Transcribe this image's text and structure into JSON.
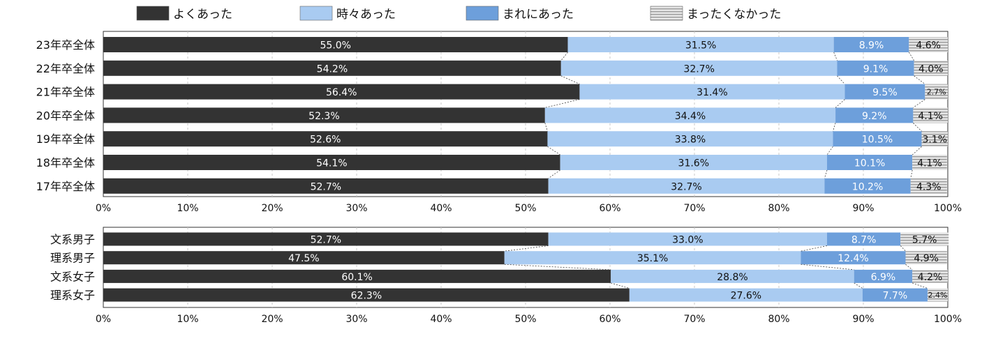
{
  "chart_data": [
    {
      "type": "bar",
      "orientation": "horizontal",
      "stacked": true,
      "percent": true,
      "categories": [
        "23年卒全体",
        "22年卒全体",
        "21年卒全体",
        "20年卒全体",
        "19年卒全体",
        "18年卒全体",
        "17年卒全体"
      ],
      "series": [
        {
          "name": "よくあった",
          "values": [
            55.0,
            54.2,
            56.4,
            52.3,
            52.6,
            54.1,
            52.7
          ],
          "labels": [
            "55.0%",
            "54.2%",
            "56.4%",
            "52.3%",
            "52.6%",
            "54.1%",
            "52.7%"
          ]
        },
        {
          "name": "時々あった",
          "values": [
            31.5,
            32.7,
            31.4,
            34.4,
            33.8,
            31.6,
            32.7
          ],
          "labels": [
            "31.5%",
            "32.7%",
            "31.4%",
            "34.4%",
            "33.8%",
            "31.6%",
            "32.7%"
          ]
        },
        {
          "name": "まれにあった",
          "values": [
            8.9,
            9.1,
            9.5,
            9.2,
            10.5,
            10.1,
            10.2
          ],
          "labels": [
            "8.9%",
            "9.1%",
            "9.5%",
            "9.2%",
            "10.5%",
            "10.1%",
            "10.2%"
          ]
        },
        {
          "name": "まったくなかった",
          "values": [
            4.6,
            4.0,
            2.7,
            4.1,
            3.1,
            4.1,
            4.3
          ],
          "labels": [
            "4.6%",
            "4.0%",
            "2.7%",
            "4.1%",
            "3.1%",
            "4.1%",
            "4.3%"
          ]
        }
      ],
      "xlim": [
        0,
        100
      ],
      "x_ticks": [
        "0%",
        "10%",
        "20%",
        "30%",
        "40%",
        "50%",
        "60%",
        "70%",
        "80%",
        "90%",
        "100%"
      ],
      "grid": true
    },
    {
      "type": "bar",
      "orientation": "horizontal",
      "stacked": true,
      "percent": true,
      "categories": [
        "文系男子",
        "理系男子",
        "文系女子",
        "理系女子"
      ],
      "series": [
        {
          "name": "よくあった",
          "values": [
            52.7,
            47.5,
            60.1,
            62.3
          ],
          "labels": [
            "52.7%",
            "47.5%",
            "60.1%",
            "62.3%"
          ]
        },
        {
          "name": "時々あった",
          "values": [
            33.0,
            35.1,
            28.8,
            27.6
          ],
          "labels": [
            "33.0%",
            "35.1%",
            "28.8%",
            "27.6%"
          ]
        },
        {
          "name": "まれにあった",
          "values": [
            8.7,
            12.4,
            6.9,
            7.7
          ],
          "labels": [
            "8.7%",
            "12.4%",
            "6.9%",
            "7.7%"
          ]
        },
        {
          "name": "まったくなかった",
          "values": [
            5.7,
            4.9,
            4.2,
            2.4
          ],
          "labels": [
            "5.7%",
            "4.9%",
            "4.2%",
            "2.4%"
          ]
        }
      ],
      "xlim": [
        0,
        100
      ],
      "x_ticks": [
        "0%",
        "10%",
        "20%",
        "30%",
        "40%",
        "50%",
        "60%",
        "70%",
        "80%",
        "90%",
        "100%"
      ],
      "grid": true
    }
  ],
  "legend": {
    "position": "top",
    "items": [
      {
        "label": "よくあった",
        "color": "#333333",
        "pattern": "solid"
      },
      {
        "label": "時々あった",
        "color": "#a9cbf1",
        "pattern": "solid"
      },
      {
        "label": "まれにあった",
        "color": "#6d9fdb",
        "pattern": "solid"
      },
      {
        "label": "まったくなかった",
        "color": "#d9d9d9",
        "pattern": "horizontal-stripes"
      }
    ]
  },
  "colors": {
    "series": [
      "#333333",
      "#a9cbf1",
      "#6d9fdb",
      "#d9d9d9"
    ],
    "label_light": "#ffffff",
    "label_dark": "#111111"
  }
}
